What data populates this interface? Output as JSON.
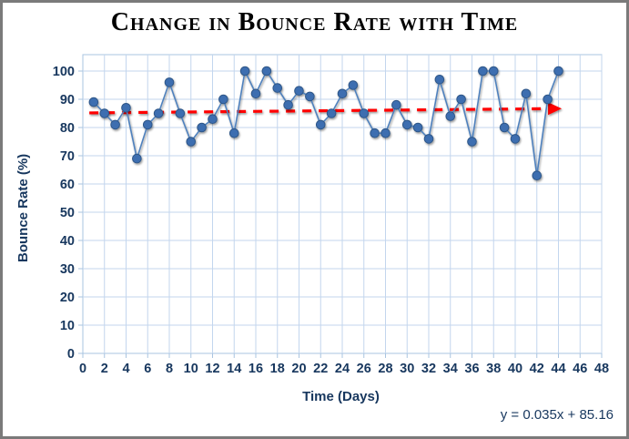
{
  "window": {
    "background_color": "#ffffff",
    "border_color": "#7a7a7a"
  },
  "chart_data": {
    "type": "line",
    "title": "Change in Bounce Rate with Time",
    "xlabel": "Time (Days)",
    "ylabel": "Bounce Rate (%)",
    "x": [
      1,
      2,
      3,
      4,
      5,
      6,
      7,
      8,
      9,
      10,
      11,
      12,
      13,
      14,
      15,
      16,
      17,
      18,
      19,
      20,
      21,
      22,
      23,
      24,
      25,
      26,
      27,
      28,
      29,
      30,
      31,
      32,
      33,
      34,
      35,
      36,
      37,
      38,
      39,
      40,
      41,
      42,
      43,
      44
    ],
    "y": [
      89,
      85,
      81,
      87,
      69,
      81,
      85,
      96,
      85,
      75,
      80,
      83,
      90,
      78,
      100,
      92,
      100,
      94,
      88,
      93,
      91,
      81,
      85,
      92,
      95,
      85,
      78,
      78,
      88,
      81,
      80,
      76,
      97,
      84,
      90,
      75,
      100,
      100,
      80,
      76,
      92,
      63,
      90,
      100
    ],
    "xlim": [
      0,
      48
    ],
    "xtick_step": 2,
    "ylim": [
      0,
      100
    ],
    "ytick_step": 10,
    "grid": true,
    "legend": "none",
    "marker": "circle",
    "series_color": "#4f81bd",
    "marker_fill": "#3e6eb0",
    "marker_edge": "#2e5788",
    "trendline": {
      "type": "linear",
      "slope": 0.035,
      "intercept": 85.16,
      "equation": "y = 0.035x + 85.16",
      "style": "dashed",
      "color": "#ff0000",
      "arrow_end": true
    }
  },
  "colors": {
    "gridline": "#c3d6ee",
    "axis_line": "#a9c4e0",
    "tick_text": "#17375e",
    "title_text": "#000000"
  }
}
